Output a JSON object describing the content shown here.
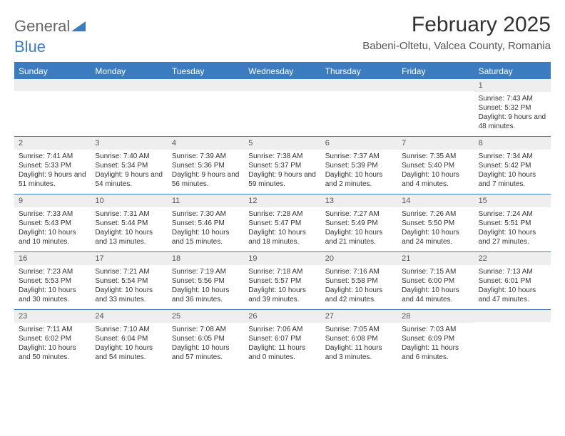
{
  "logo": {
    "word1": "General",
    "word2": "Blue"
  },
  "title": "February 2025",
  "location": "Babeni-Oltetu, Valcea County, Romania",
  "colors": {
    "accent": "#3b7bbf",
    "header_text": "#ffffff",
    "daynum_bg": "#eeeeee",
    "text": "#333333",
    "muted": "#555555",
    "background": "#ffffff"
  },
  "day_names": [
    "Sunday",
    "Monday",
    "Tuesday",
    "Wednesday",
    "Thursday",
    "Friday",
    "Saturday"
  ],
  "weeks": [
    [
      {
        "blank": true
      },
      {
        "blank": true
      },
      {
        "blank": true
      },
      {
        "blank": true
      },
      {
        "blank": true
      },
      {
        "blank": true
      },
      {
        "day": "1",
        "sunrise": "7:43 AM",
        "sunset": "5:32 PM",
        "daylight": "9 hours and 48 minutes."
      }
    ],
    [
      {
        "day": "2",
        "sunrise": "7:41 AM",
        "sunset": "5:33 PM",
        "daylight": "9 hours and 51 minutes."
      },
      {
        "day": "3",
        "sunrise": "7:40 AM",
        "sunset": "5:34 PM",
        "daylight": "9 hours and 54 minutes."
      },
      {
        "day": "4",
        "sunrise": "7:39 AM",
        "sunset": "5:36 PM",
        "daylight": "9 hours and 56 minutes."
      },
      {
        "day": "5",
        "sunrise": "7:38 AM",
        "sunset": "5:37 PM",
        "daylight": "9 hours and 59 minutes."
      },
      {
        "day": "6",
        "sunrise": "7:37 AM",
        "sunset": "5:39 PM",
        "daylight": "10 hours and 2 minutes."
      },
      {
        "day": "7",
        "sunrise": "7:35 AM",
        "sunset": "5:40 PM",
        "daylight": "10 hours and 4 minutes."
      },
      {
        "day": "8",
        "sunrise": "7:34 AM",
        "sunset": "5:42 PM",
        "daylight": "10 hours and 7 minutes."
      }
    ],
    [
      {
        "day": "9",
        "sunrise": "7:33 AM",
        "sunset": "5:43 PM",
        "daylight": "10 hours and 10 minutes."
      },
      {
        "day": "10",
        "sunrise": "7:31 AM",
        "sunset": "5:44 PM",
        "daylight": "10 hours and 13 minutes."
      },
      {
        "day": "11",
        "sunrise": "7:30 AM",
        "sunset": "5:46 PM",
        "daylight": "10 hours and 15 minutes."
      },
      {
        "day": "12",
        "sunrise": "7:28 AM",
        "sunset": "5:47 PM",
        "daylight": "10 hours and 18 minutes."
      },
      {
        "day": "13",
        "sunrise": "7:27 AM",
        "sunset": "5:49 PM",
        "daylight": "10 hours and 21 minutes."
      },
      {
        "day": "14",
        "sunrise": "7:26 AM",
        "sunset": "5:50 PM",
        "daylight": "10 hours and 24 minutes."
      },
      {
        "day": "15",
        "sunrise": "7:24 AM",
        "sunset": "5:51 PM",
        "daylight": "10 hours and 27 minutes."
      }
    ],
    [
      {
        "day": "16",
        "sunrise": "7:23 AM",
        "sunset": "5:53 PM",
        "daylight": "10 hours and 30 minutes."
      },
      {
        "day": "17",
        "sunrise": "7:21 AM",
        "sunset": "5:54 PM",
        "daylight": "10 hours and 33 minutes."
      },
      {
        "day": "18",
        "sunrise": "7:19 AM",
        "sunset": "5:56 PM",
        "daylight": "10 hours and 36 minutes."
      },
      {
        "day": "19",
        "sunrise": "7:18 AM",
        "sunset": "5:57 PM",
        "daylight": "10 hours and 39 minutes."
      },
      {
        "day": "20",
        "sunrise": "7:16 AM",
        "sunset": "5:58 PM",
        "daylight": "10 hours and 42 minutes."
      },
      {
        "day": "21",
        "sunrise": "7:15 AM",
        "sunset": "6:00 PM",
        "daylight": "10 hours and 44 minutes."
      },
      {
        "day": "22",
        "sunrise": "7:13 AM",
        "sunset": "6:01 PM",
        "daylight": "10 hours and 47 minutes."
      }
    ],
    [
      {
        "day": "23",
        "sunrise": "7:11 AM",
        "sunset": "6:02 PM",
        "daylight": "10 hours and 50 minutes."
      },
      {
        "day": "24",
        "sunrise": "7:10 AM",
        "sunset": "6:04 PM",
        "daylight": "10 hours and 54 minutes."
      },
      {
        "day": "25",
        "sunrise": "7:08 AM",
        "sunset": "6:05 PM",
        "daylight": "10 hours and 57 minutes."
      },
      {
        "day": "26",
        "sunrise": "7:06 AM",
        "sunset": "6:07 PM",
        "daylight": "11 hours and 0 minutes."
      },
      {
        "day": "27",
        "sunrise": "7:05 AM",
        "sunset": "6:08 PM",
        "daylight": "11 hours and 3 minutes."
      },
      {
        "day": "28",
        "sunrise": "7:03 AM",
        "sunset": "6:09 PM",
        "daylight": "11 hours and 6 minutes."
      },
      {
        "blank": true
      }
    ]
  ],
  "labels": {
    "sunrise": "Sunrise:",
    "sunset": "Sunset:",
    "daylight": "Daylight:"
  }
}
